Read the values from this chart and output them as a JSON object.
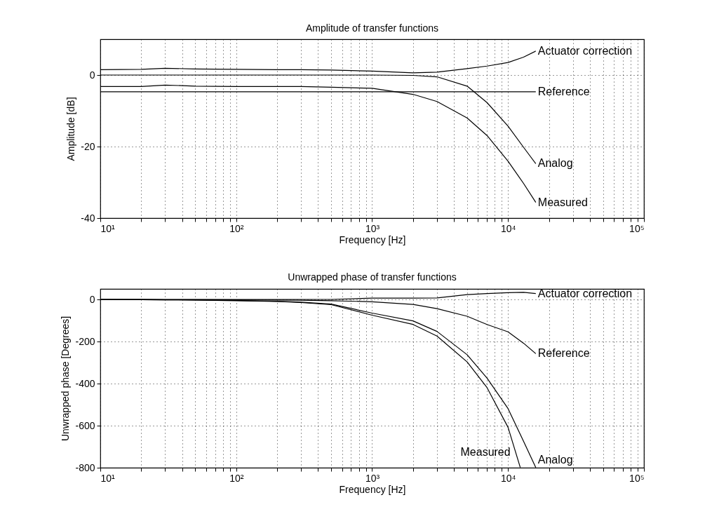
{
  "chart_data": [
    {
      "type": "line",
      "title": "Amplitude of transfer functions",
      "xlabel": "Frequency [Hz]",
      "ylabel": "Amplitude [dB]",
      "log": "x",
      "grid": true,
      "legend": false,
      "line_style": "solid",
      "xlim": [
        10,
        100000
      ],
      "ylim": [
        -40,
        10
      ],
      "xticks": [
        {
          "value": 10,
          "label": "10¹"
        },
        {
          "value": 20,
          "label": null
        },
        {
          "value": 30,
          "label": null
        },
        {
          "value": 40,
          "label": null
        },
        {
          "value": 50,
          "label": null
        },
        {
          "value": 60,
          "label": null
        },
        {
          "value": 70,
          "label": null
        },
        {
          "value": 80,
          "label": null
        },
        {
          "value": 90,
          "label": null
        },
        {
          "value": 100,
          "label": "10²"
        },
        {
          "value": 200,
          "label": null
        },
        {
          "value": 300,
          "label": null
        },
        {
          "value": 400,
          "label": null
        },
        {
          "value": 500,
          "label": null
        },
        {
          "value": 600,
          "label": null
        },
        {
          "value": 700,
          "label": null
        },
        {
          "value": 800,
          "label": null
        },
        {
          "value": 900,
          "label": null
        },
        {
          "value": 1000,
          "label": "10³"
        },
        {
          "value": 2000,
          "label": null
        },
        {
          "value": 3000,
          "label": null
        },
        {
          "value": 4000,
          "label": null
        },
        {
          "value": 5000,
          "label": null
        },
        {
          "value": 6000,
          "label": null
        },
        {
          "value": 7000,
          "label": null
        },
        {
          "value": 8000,
          "label": null
        },
        {
          "value": 9000,
          "label": null
        },
        {
          "value": 10000,
          "label": "10⁴"
        },
        {
          "value": 20000,
          "label": null
        },
        {
          "value": 30000,
          "label": null
        },
        {
          "value": 40000,
          "label": null
        },
        {
          "value": 50000,
          "label": null
        },
        {
          "value": 60000,
          "label": null
        },
        {
          "value": 70000,
          "label": null
        },
        {
          "value": 80000,
          "label": null
        },
        {
          "value": 90000,
          "label": null
        },
        {
          "value": 100000,
          "label": "10⁵"
        }
      ],
      "yticks": [
        -40,
        -20,
        0
      ],
      "x": [
        10,
        20,
        30,
        50,
        100,
        200,
        300,
        500,
        1000,
        2000,
        3000,
        5000,
        7000,
        10000,
        13000,
        16000
      ],
      "series": [
        {
          "name": "Actuator correction",
          "color": "#000000",
          "values": [
            1.5,
            1.6,
            1.9,
            1.7,
            1.6,
            1.5,
            1.5,
            1.4,
            1.1,
            0.6,
            0.8,
            1.8,
            2.5,
            3.5,
            5.0,
            6.7
          ]
        },
        {
          "name": "Reference",
          "color": "#000000",
          "values": [
            -4.7,
            -4.7,
            -4.7,
            -4.7,
            -4.7,
            -4.7,
            -4.7,
            -4.7,
            -4.7,
            -4.7,
            -4.7,
            -4.7,
            -4.7,
            -4.7,
            -4.7,
            -4.7
          ]
        },
        {
          "name": "Analog",
          "color": "#000000",
          "values": [
            0,
            0,
            0,
            0,
            0,
            0,
            0,
            0,
            0,
            -0.1,
            -0.5,
            -3.1,
            -7.7,
            -14.3,
            -20.2,
            -24.8
          ]
        },
        {
          "name": "Measured",
          "color": "#000000",
          "values": [
            -3.2,
            -3.2,
            -2.8,
            -3.1,
            -3.2,
            -3.2,
            -3.2,
            -3.4,
            -3.7,
            -5.4,
            -7.4,
            -12,
            -16.9,
            -24.1,
            -30.3,
            -35.6
          ]
        }
      ]
    },
    {
      "type": "line",
      "title": "Unwrapped phase of transfer functions",
      "xlabel": "Frequency [Hz]",
      "ylabel": "Unwrapped phase [Degrees]",
      "log": "x",
      "grid": true,
      "legend": false,
      "line_style": "solid",
      "xlim": [
        10,
        100000
      ],
      "ylim": [
        -800,
        50
      ],
      "xticks": [
        {
          "value": 10,
          "label": "10¹"
        },
        {
          "value": 20,
          "label": null
        },
        {
          "value": 30,
          "label": null
        },
        {
          "value": 40,
          "label": null
        },
        {
          "value": 50,
          "label": null
        },
        {
          "value": 60,
          "label": null
        },
        {
          "value": 70,
          "label": null
        },
        {
          "value": 80,
          "label": null
        },
        {
          "value": 90,
          "label": null
        },
        {
          "value": 100,
          "label": "10²"
        },
        {
          "value": 200,
          "label": null
        },
        {
          "value": 300,
          "label": null
        },
        {
          "value": 400,
          "label": null
        },
        {
          "value": 500,
          "label": null
        },
        {
          "value": 600,
          "label": null
        },
        {
          "value": 700,
          "label": null
        },
        {
          "value": 800,
          "label": null
        },
        {
          "value": 900,
          "label": null
        },
        {
          "value": 1000,
          "label": "10³"
        },
        {
          "value": 2000,
          "label": null
        },
        {
          "value": 3000,
          "label": null
        },
        {
          "value": 4000,
          "label": null
        },
        {
          "value": 5000,
          "label": null
        },
        {
          "value": 6000,
          "label": null
        },
        {
          "value": 7000,
          "label": null
        },
        {
          "value": 8000,
          "label": null
        },
        {
          "value": 9000,
          "label": null
        },
        {
          "value": 10000,
          "label": "10⁴"
        },
        {
          "value": 20000,
          "label": null
        },
        {
          "value": 30000,
          "label": null
        },
        {
          "value": 40000,
          "label": null
        },
        {
          "value": 50000,
          "label": null
        },
        {
          "value": 60000,
          "label": null
        },
        {
          "value": 70000,
          "label": null
        },
        {
          "value": 80000,
          "label": null
        },
        {
          "value": 90000,
          "label": null
        },
        {
          "value": 100000,
          "label": "10⁵"
        }
      ],
      "yticks": [
        -800,
        -600,
        -400,
        -200,
        0
      ],
      "x": [
        10,
        20,
        30,
        50,
        100,
        200,
        300,
        500,
        1000,
        2000,
        3000,
        5000,
        7000,
        10000,
        13000,
        16000
      ],
      "series": [
        {
          "name": "Actuator correction",
          "color": "#000000",
          "values": [
            0,
            0,
            0,
            0,
            0,
            0,
            0,
            0,
            6,
            6,
            7,
            23,
            28,
            32,
            34,
            28
          ]
        },
        {
          "name": "Reference",
          "color": "#000000",
          "values": [
            0,
            0,
            -1,
            -1,
            -2,
            -3,
            -4,
            -6,
            -11,
            -24,
            -44,
            -80,
            -119,
            -154,
            -208,
            -258
          ]
        },
        {
          "name": "Analog",
          "color": "#000000",
          "values": [
            0,
            -1,
            -2,
            -3,
            -5,
            -9,
            -13,
            -22,
            -65,
            -102,
            -152,
            -263,
            -374,
            -519,
            -674,
            -799
          ]
        },
        {
          "name": "Measured",
          "color": "#000000",
          "x": [
            10,
            20,
            30,
            50,
            100,
            200,
            300,
            500,
            1000,
            2000,
            3000,
            5000,
            7000,
            10000,
            12300
          ],
          "values": [
            0,
            -1,
            -2,
            -3,
            -6,
            -10,
            -15,
            -25,
            -75,
            -119,
            -174,
            -297,
            -419,
            -608,
            -799
          ]
        }
      ]
    }
  ]
}
